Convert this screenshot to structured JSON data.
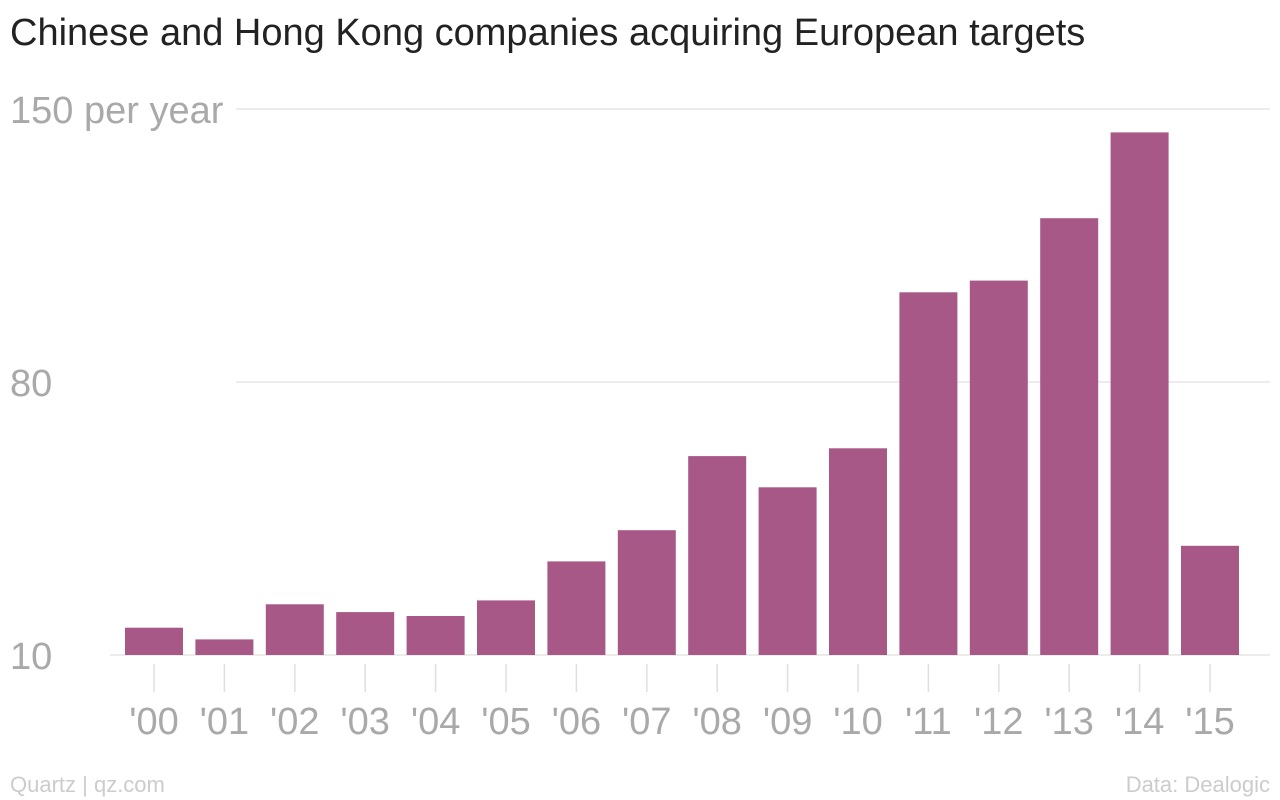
{
  "chart_data": {
    "type": "bar",
    "title": "Chinese and Hong Kong companies acquiring European targets",
    "categories": [
      "'00",
      "'01",
      "'02",
      "'03",
      "'04",
      "'05",
      "'06",
      "'07",
      "'08",
      "'09",
      "'10",
      "'11",
      "'12",
      "'13",
      "'14",
      "'15"
    ],
    "values": [
      17,
      14,
      23,
      21,
      20,
      24,
      34,
      42,
      61,
      53,
      63,
      103,
      106,
      122,
      144,
      38
    ],
    "y_ticks": [
      10,
      80,
      150
    ],
    "y_tick_labels": [
      "10",
      "80",
      "150 per year"
    ],
    "ylim": [
      10,
      150
    ],
    "grid": true,
    "bar_color": "#a85886"
  },
  "footer": {
    "credit": "Quartz | qz.com",
    "source": "Data: Dealogic"
  }
}
